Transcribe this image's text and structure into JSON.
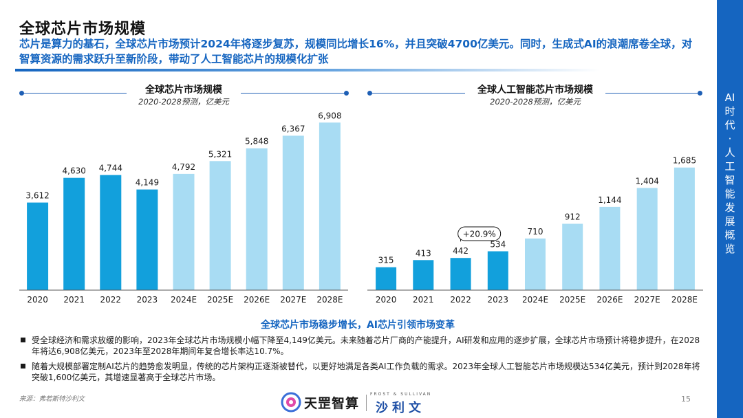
{
  "page": {
    "title": "全球芯片市场规模",
    "subtitle": "芯片是算力的基石，全球芯片市场预计2024年将逐步复苏，规模同比增长16%，并且突破4700亿美元。同时，生成式AI的浪潮席卷全球，对智算资源的需求跃升至新阶段，带动了人工智能芯片的规模化扩张",
    "sidebar_label": "AI时代·人工智能发展概览",
    "summary": "全球芯片市场稳步增长，AI芯片引领市场变革",
    "bullets": [
      "受全球经济和需求放缓的影响，2023年全球芯片市场规模小幅下降至4,149亿美元。未来随着芯片厂商的产能提升，AI研发和应用的逐步扩展，全球芯片市场预计将稳步提升，在2028年将达6,908亿美元，2023年至2028年期间年复合增长率达10.7%。",
      "随着大规模部署定制AI芯片的趋势愈发明显，传统的芯片架构正逐渐被替代，以更好地满足各类AI工作负载的需求。2023年全球人工智能芯片市场规模达534亿美元，预计到2028年将突破1,600亿美元，其增速显著高于全球芯片市场。"
    ],
    "source": "来源：弗若斯特沙利文",
    "page_number": "15",
    "logo_left": "天罡智算",
    "logo_right_top": "FROST & SULLIVAN",
    "logo_right_cn": "沙利文"
  },
  "colors": {
    "actual": "#12a0dc",
    "forecast": "#a8dcf3",
    "accent": "#1565c0",
    "axis": "#555555"
  },
  "chart_data": [
    {
      "type": "bar",
      "title": "全球芯片市场规模",
      "subtitle": "2020-2028预测，亿美元",
      "categories": [
        "2020",
        "2021",
        "2022",
        "2023",
        "2024E",
        "2025E",
        "2026E",
        "2027E",
        "2028E"
      ],
      "values": [
        3612,
        4630,
        4744,
        4149,
        4792,
        5321,
        5848,
        6367,
        6908
      ],
      "value_labels": [
        "3,612",
        "4,630",
        "4,744",
        "4,149",
        "4,792",
        "5,321",
        "5,848",
        "6,367",
        "6,908"
      ],
      "forecast_from_index": 4,
      "ylim": [
        0,
        7200
      ]
    },
    {
      "type": "bar",
      "title": "全球人工智能芯片市场规模",
      "subtitle": "2020-2028预测，亿美元",
      "categories": [
        "2020",
        "2021",
        "2022",
        "2023",
        "2024E",
        "2025E",
        "2026E",
        "2027E",
        "2028E"
      ],
      "values": [
        315,
        413,
        442,
        534,
        710,
        912,
        1144,
        1404,
        1685
      ],
      "value_labels": [
        "315",
        "413",
        "442",
        "534",
        "710",
        "912",
        "1,144",
        "1,404",
        "1,685"
      ],
      "forecast_from_index": 4,
      "ylim": [
        0,
        2400
      ],
      "annotation": {
        "text": "+20.9%",
        "from_index": 2,
        "to_index": 3
      }
    }
  ]
}
